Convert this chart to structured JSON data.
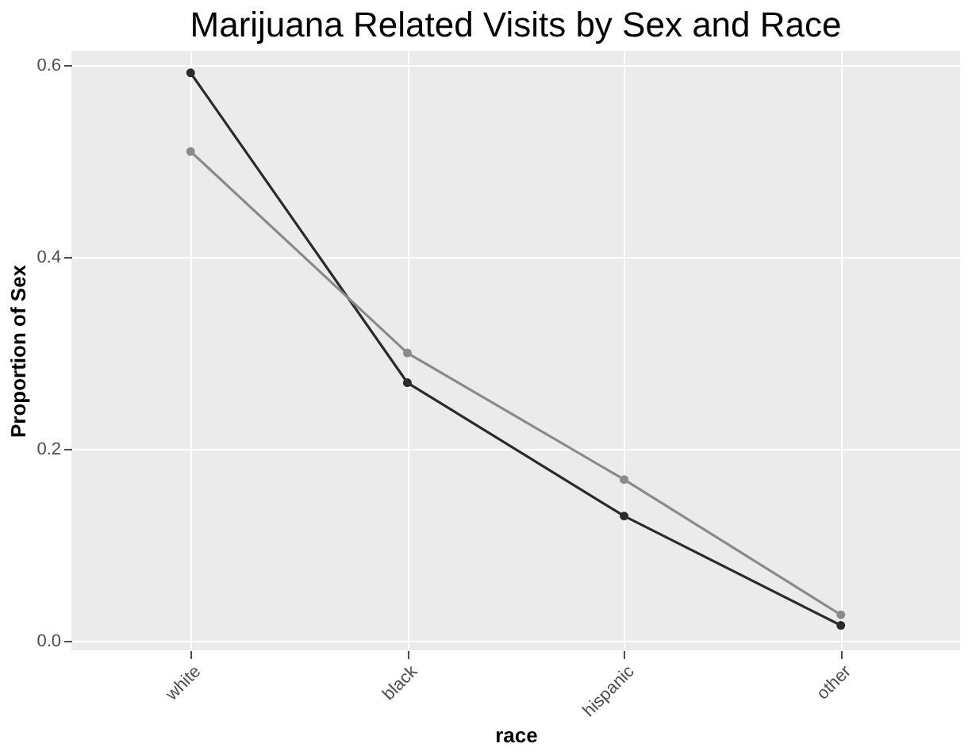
{
  "chart_data": {
    "type": "line",
    "title": "Marijuana Related Visits by Sex and Race",
    "xlabel": "race",
    "ylabel": "Proportion of Sex",
    "categories": [
      "white",
      "black",
      "hispanic",
      "other"
    ],
    "series": [
      {
        "color": "#2b2b2b",
        "values": [
          0.592,
          0.269,
          0.13,
          0.016
        ]
      },
      {
        "color": "#8a8a8a",
        "values": [
          0.51,
          0.3,
          0.168,
          0.027
        ]
      }
    ],
    "ylim": [
      -0.01,
      0.615
    ],
    "yticks": [
      {
        "value": 0,
        "label": "0.0"
      },
      0.2,
      0.4,
      0.6
    ],
    "grid": true,
    "marker": "circle"
  }
}
